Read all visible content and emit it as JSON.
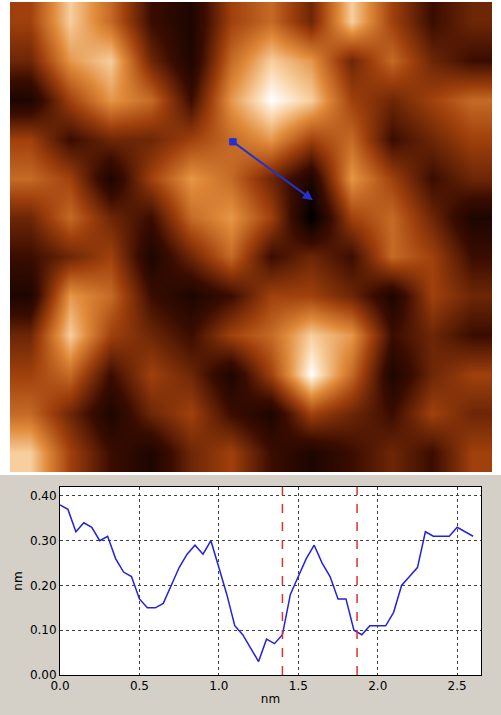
{
  "chart_data": [
    {
      "type": "heatmap",
      "tick_labels": false,
      "z": [
        [
          6,
          9,
          7,
          4,
          3,
          6,
          7,
          5,
          9,
          6,
          4,
          5
        ],
        [
          5,
          8,
          9,
          5,
          3,
          7,
          9,
          8,
          5,
          7,
          5,
          4
        ],
        [
          3,
          6,
          8,
          7,
          4,
          8,
          10,
          9,
          6,
          5,
          6,
          7
        ],
        [
          6,
          4,
          5,
          5,
          6,
          7,
          8,
          6,
          7,
          4,
          5,
          6
        ],
        [
          7,
          6,
          3,
          6,
          8,
          7,
          5,
          3,
          8,
          6,
          4,
          5
        ],
        [
          5,
          7,
          5,
          4,
          7,
          8,
          6,
          2,
          6,
          7,
          5,
          3
        ],
        [
          4,
          5,
          6,
          3,
          5,
          7,
          4,
          5,
          4,
          7,
          6,
          4
        ],
        [
          3,
          8,
          7,
          4,
          3,
          4,
          6,
          6,
          5,
          3,
          6,
          5
        ],
        [
          5,
          9,
          6,
          5,
          4,
          6,
          7,
          9,
          8,
          4,
          5,
          4
        ],
        [
          6,
          7,
          4,
          6,
          5,
          3,
          6,
          10,
          7,
          3,
          5,
          6
        ],
        [
          7,
          5,
          3,
          5,
          6,
          4,
          3,
          6,
          5,
          4,
          6,
          5
        ],
        [
          9,
          6,
          4,
          3,
          5,
          6,
          4,
          3,
          4,
          5,
          4,
          6
        ]
      ],
      "profile_line": {
        "x": [
          5.05,
          7.04
        ],
        "y": [
          3.07,
          4.56
        ]
      },
      "color": "#2233cc"
    },
    {
      "type": "line",
      "xlabel": "nm",
      "ylabel": "nm",
      "color": "#2222dd",
      "grid": true,
      "x": [
        0,
        0.05,
        0.1,
        0.15,
        0.2,
        0.25,
        0.3,
        0.35,
        0.4,
        0.45,
        0.5,
        0.55,
        0.6,
        0.65,
        0.7,
        0.75,
        0.8,
        0.85,
        0.9,
        0.95,
        1.0,
        1.05,
        1.1,
        1.15,
        1.2,
        1.25,
        1.3,
        1.35,
        1.4,
        1.45,
        1.5,
        1.55,
        1.6,
        1.65,
        1.7,
        1.75,
        1.8,
        1.85,
        1.9,
        1.95,
        2.0,
        2.05,
        2.1,
        2.15,
        2.2,
        2.25,
        2.3,
        2.35,
        2.4,
        2.45,
        2.5,
        2.55,
        2.6
      ],
      "values": [
        0.38,
        0.37,
        0.32,
        0.34,
        0.33,
        0.3,
        0.31,
        0.26,
        0.23,
        0.22,
        0.17,
        0.15,
        0.15,
        0.16,
        0.2,
        0.24,
        0.27,
        0.29,
        0.27,
        0.3,
        0.24,
        0.18,
        0.11,
        0.09,
        0.06,
        0.03,
        0.08,
        0.07,
        0.09,
        0.18,
        0.22,
        0.26,
        0.29,
        0.25,
        0.22,
        0.17,
        0.17,
        0.1,
        0.09,
        0.11,
        0.11,
        0.11,
        0.14,
        0.2,
        0.22,
        0.24,
        0.32,
        0.31,
        0.31,
        0.31,
        0.33,
        0.32,
        0.31
      ],
      "xlim": [
        0,
        2.65
      ],
      "ylim": [
        0,
        0.42
      ],
      "xticks": [
        {
          "value": 0,
          "label": "0.0"
        },
        {
          "value": 0.5,
          "label": "0.5"
        },
        {
          "value": 1,
          "label": "1.0"
        },
        {
          "value": 1.5,
          "label": "1.5"
        },
        {
          "value": 2,
          "label": "2.0"
        },
        {
          "value": 2.5,
          "label": "2.5"
        }
      ],
      "yticks": [
        {
          "value": 0,
          "label": "0.00"
        },
        {
          "value": 0.1,
          "label": "0.10"
        },
        {
          "value": 0.2,
          "label": "0.20"
        },
        {
          "value": 0.3,
          "label": "0.30"
        },
        {
          "value": 0.4,
          "label": "0.40"
        }
      ],
      "vlines": [
        1.4,
        1.87
      ]
    }
  ]
}
